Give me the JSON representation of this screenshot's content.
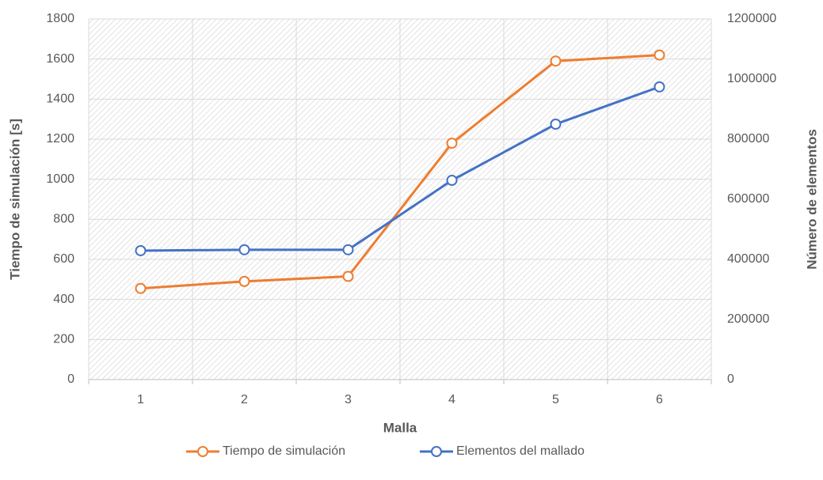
{
  "chart_data": {
    "type": "line",
    "x_label": "Malla",
    "y_label": "Tiempo de simulación [s]",
    "y2_label": "Número de elementos",
    "categories": [
      "1",
      "2",
      "3",
      "4",
      "5",
      "6"
    ],
    "series": [
      {
        "name": "Tiempo de simulación",
        "color": "#ED7D31",
        "values": [
          455,
          490,
          515,
          1180,
          1590,
          1620
        ]
      },
      {
        "name": "Elementos del mallado",
        "color": "#4472C4",
        "axis": "y2",
        "values": [
          429000,
          432000,
          432000,
          663000,
          850000,
          974000
        ]
      }
    ],
    "ylim": [
      0,
      1800
    ],
    "yticks": [
      0,
      200,
      400,
      600,
      800,
      1000,
      1200,
      1400,
      1600,
      1800
    ],
    "y2lim": [
      0,
      1200000
    ],
    "y2ticks": [
      0,
      200000,
      400000,
      600000,
      800000,
      1000000,
      1200000
    ],
    "grid": true,
    "legend": "bottom"
  }
}
